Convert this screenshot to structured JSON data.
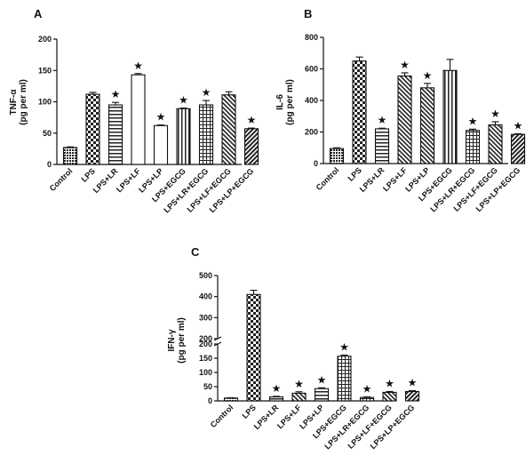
{
  "chart_data": [
    {
      "type": "bar",
      "panel_label": "A",
      "ylabel": "TNF-α",
      "ylabel_unit": "(pg per ml)",
      "ylim": [
        0,
        200
      ],
      "yticks": [
        "0",
        "50",
        "100",
        "150",
        "200"
      ],
      "categories": [
        "Control",
        "LPS",
        "LPS+LR",
        "LPS+LF",
        "LPS+LP",
        "LPS+EGCG",
        "LPS+LR+EGCG",
        "LPS+LF+EGCG",
        "LPS+LP+EGCG"
      ],
      "values": [
        27,
        112,
        95,
        143,
        62,
        89,
        95,
        111,
        57
      ],
      "errors": [
        1,
        3,
        4,
        2,
        1,
        1,
        7,
        5,
        1
      ],
      "significance": [
        "",
        "",
        "*",
        "*",
        "*",
        "*",
        "*",
        "",
        "*"
      ],
      "patterns": [
        "dense-check",
        "check",
        "horizontal",
        "none",
        "none",
        "vertical",
        "grid",
        "diagonal-down",
        "diagonal-up"
      ]
    },
    {
      "type": "bar",
      "panel_label": "B",
      "ylabel": "IL-6",
      "ylabel_unit": "(pg per ml)",
      "ylim": [
        0,
        800
      ],
      "yticks": [
        "0",
        "200",
        "400",
        "600",
        "800"
      ],
      "categories": [
        "Control",
        "LPS",
        "LPS+LR",
        "LPS+LF",
        "LPS+LP",
        "LPS+EGCG",
        "LPS+LR+EGCG",
        "LPS+LF+EGCG",
        "LPS+LP+EGCG"
      ],
      "values": [
        95,
        650,
        220,
        555,
        480,
        590,
        210,
        245,
        185
      ],
      "errors": [
        5,
        25,
        4,
        20,
        28,
        70,
        8,
        20,
        4
      ],
      "significance": [
        "",
        "",
        "*",
        "*",
        "*",
        "",
        "*",
        "*",
        "*"
      ],
      "patterns": [
        "dense-check",
        "check",
        "horizontal",
        "diagonal-down",
        "diagonal-down",
        "vertical",
        "grid",
        "diagonal-down",
        "diagonal-up"
      ]
    },
    {
      "type": "bar",
      "panel_label": "C",
      "ylabel": "IFN-γ",
      "ylabel_unit": "(pg per ml)",
      "axis_break": true,
      "lower_range": [
        0,
        200
      ],
      "upper_range": [
        200,
        500
      ],
      "yticks_lower": [
        "0",
        "50",
        "100",
        "150",
        "200"
      ],
      "yticks_upper": [
        "200",
        "300",
        "400",
        "500"
      ],
      "categories": [
        "Control",
        "LPS",
        "LPS+LR",
        "LPS+LF",
        "LPS+LP",
        "LPS+EGCG",
        "LPS+LR+EGCG",
        "LPS+LF+EGCG",
        "LPS+LP+EGCG"
      ],
      "values": [
        10,
        410,
        14,
        27,
        43,
        157,
        12,
        30,
        33
      ],
      "errors": [
        1,
        20,
        2,
        5,
        3,
        4,
        2,
        3,
        3
      ],
      "significance": [
        "",
        "",
        "*",
        "*",
        "*",
        "*",
        "*",
        "*",
        "*"
      ],
      "patterns": [
        "dense-check",
        "check",
        "horizontal",
        "diagonal-down",
        "horizontal",
        "grid",
        "grid",
        "diagonal-down",
        "diagonal-up"
      ]
    }
  ]
}
